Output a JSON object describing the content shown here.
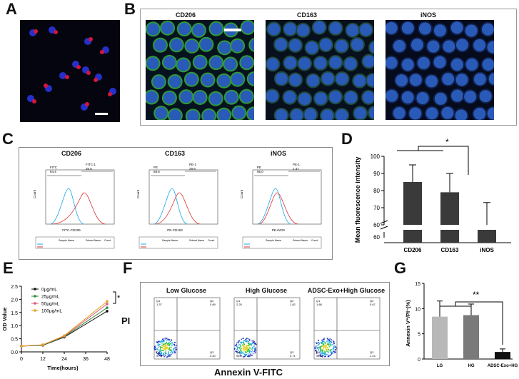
{
  "panel_letters": [
    "A",
    "B",
    "C",
    "D",
    "E",
    "F",
    "G"
  ],
  "panel_b": {
    "titles": [
      "CD206",
      "CD163",
      "iNOS"
    ]
  },
  "panel_c": {
    "titles": [
      "CD206",
      "CD163",
      "iNOS"
    ],
    "gates": [
      {
        "left_name": "FITC",
        "left_val": "64.4",
        "right_name": "FITC-1",
        "right_val": "35.6",
        "xlabel": "FITC-CD206"
      },
      {
        "left_name": "PE",
        "left_val": "68.6",
        "right_name": "PE-1",
        "right_val": "29.9",
        "xlabel": "PE-CD163"
      },
      {
        "left_name": "PE",
        "left_val": "95.0",
        "right_name": "PE-1",
        "right_val": "1.47",
        "xlabel": "PE-iNOS"
      }
    ],
    "ylabel": "Count",
    "legend_headers": [
      "Sample Name",
      "Subset Name",
      "Count"
    ]
  },
  "panel_f": {
    "titles": [
      "Low Glucose",
      "High Glucose",
      "ADSC-Exo+High Glucose"
    ],
    "y_label": "PI",
    "x_label": "Annexin V-FITC",
    "quadrants": [
      {
        "q1": "Q1\n1.37",
        "q2": "Q2\n0.89",
        "q3": "Q3\n0.40",
        "q4": "Q4\n97.3"
      },
      {
        "q1": "Q1\n2.25",
        "q2": "Q2\n1.82",
        "q3": "Q3\n0.71",
        "q4": "Q4\n95.2"
      },
      {
        "q1": "Q1\n1.88",
        "q2": "Q2\n0.67",
        "q3": "Q3\n1.24",
        "q4": "Q4\n96.2"
      }
    ]
  },
  "chart_data": [
    {
      "panel": "D",
      "type": "bar",
      "categories": [
        "CD206",
        "CD163",
        "iNOS"
      ],
      "values": [
        85,
        79,
        60
      ],
      "errors": [
        10,
        11,
        13
      ],
      "ylabel": "Mean fluorescence intensity",
      "yticks": [
        60,
        70,
        80,
        90,
        100
      ],
      "ylim": [
        60,
        100
      ],
      "axis_break": true,
      "significance": "*"
    },
    {
      "panel": "E",
      "type": "line",
      "x": [
        0,
        12,
        24,
        48
      ],
      "xlabel": "Time(hours)",
      "ylabel": "OD Value",
      "ylim": [
        0,
        2.5
      ],
      "yticks": [
        0,
        0.5,
        1.0,
        1.5,
        2.0,
        2.5
      ],
      "xticks": [
        0,
        12,
        24,
        36,
        48
      ],
      "series": [
        {
          "name": "0μg/mL",
          "color": "#111111",
          "values": [
            0.22,
            0.25,
            0.56,
            1.55
          ]
        },
        {
          "name": "25μg/mL",
          "color": "#2e8b3a",
          "values": [
            0.22,
            0.26,
            0.58,
            1.68
          ]
        },
        {
          "name": "50μg/mL",
          "color": "#e05a7a",
          "values": [
            0.22,
            0.27,
            0.6,
            1.82
          ]
        },
        {
          "name": "100μg/mL",
          "color": "#e6a020",
          "values": [
            0.22,
            0.27,
            0.62,
            1.92
          ]
        }
      ],
      "significance": "*"
    },
    {
      "panel": "G",
      "type": "bar",
      "categories": [
        "LG",
        "HG",
        "ADSC-Exo+HG"
      ],
      "values": [
        8.4,
        8.7,
        1.4
      ],
      "errors": [
        3.1,
        2.2,
        0.6
      ],
      "colors": [
        "#b8b8b8",
        "#7a7a7a",
        "#111111"
      ],
      "ylabel": "Annexin V⁺/PI⁻(%)",
      "yticks": [
        0,
        5,
        10,
        15
      ],
      "ylim": [
        0,
        15
      ],
      "significance": "**"
    }
  ]
}
